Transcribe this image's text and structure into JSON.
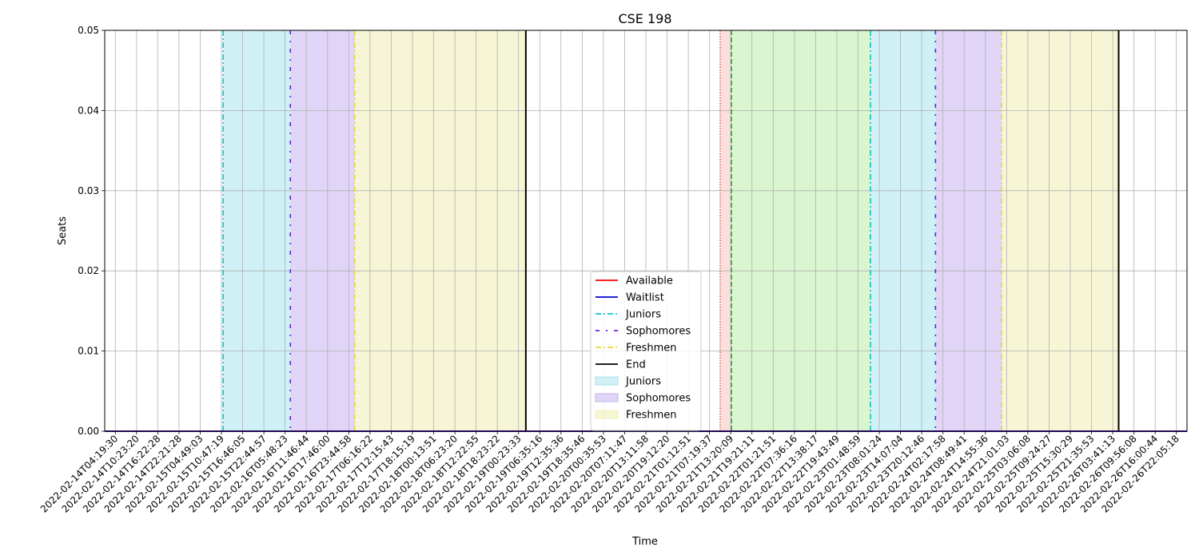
{
  "chart_data": {
    "type": "line",
    "title": "CSE 198",
    "xlabel": "Time",
    "ylabel": "Seats",
    "ylim": [
      0,
      0.05
    ],
    "y_ticks": [
      "0.00",
      "0.01",
      "0.02",
      "0.03",
      "0.04",
      "0.05"
    ],
    "grid": true,
    "legend_position": "bottom-center",
    "x_ticks": [
      "2022-02-14T04:19:30",
      "2022-02-14T10:23:20",
      "2022-02-14T16:22:28",
      "2022-02-14T22:21:28",
      "2022-02-15T04:49:03",
      "2022-02-15T10:47:19",
      "2022-02-15T16:46:05",
      "2022-02-15T22:44:57",
      "2022-02-16T05:48:23",
      "2022-02-16T11:46:44",
      "2022-02-16T17:46:00",
      "2022-02-16T23:44:58",
      "2022-02-17T06:16:22",
      "2022-02-17T12:15:43",
      "2022-02-17T18:15:19",
      "2022-02-18T00:13:51",
      "2022-02-18T06:23:20",
      "2022-02-18T12:22:55",
      "2022-02-18T18:23:22",
      "2022-02-19T00:23:33",
      "2022-02-19T06:35:16",
      "2022-02-19T12:35:36",
      "2022-02-19T18:35:46",
      "2022-02-20T00:35:53",
      "2022-02-20T07:11:47",
      "2022-02-20T13:11:58",
      "2022-02-20T19:12:20",
      "2022-02-21T01:12:51",
      "2022-02-21T07:19:37",
      "2022-02-21T13:20:09",
      "2022-02-21T19:21:11",
      "2022-02-22T01:21:51",
      "2022-02-22T07:36:16",
      "2022-02-22T13:38:17",
      "2022-02-22T19:43:49",
      "2022-02-23T01:48:59",
      "2022-02-23T08:01:24",
      "2022-02-23T14:07:04",
      "2022-02-23T20:12:46",
      "2022-02-24T02:17:58",
      "2022-02-24T08:49:41",
      "2022-02-24T14:55:36",
      "2022-02-24T21:01:03",
      "2022-02-25T03:06:08",
      "2022-02-25T09:24:27",
      "2022-02-25T15:30:29",
      "2022-02-25T21:35:53",
      "2022-02-26T03:41:13",
      "2022-02-26T09:56:08",
      "2022-02-26T16:00:44",
      "2022-02-26T22:05:18"
    ],
    "series": [
      {
        "name": "Available",
        "color": "#ff0000",
        "style": "solid",
        "values": "all 0"
      },
      {
        "name": "Waitlist",
        "color": "#0000cc",
        "style": "solid",
        "values": "all 0"
      }
    ],
    "vertical_lines": [
      {
        "label": "Juniors",
        "x": "2022-02-15T10:47:19",
        "color": "#17becf",
        "style": "dashdot"
      },
      {
        "label": "Sophomores",
        "x": "2022-02-16T05:48:23",
        "color": "#6a1fd0",
        "style": "dashdot-sparse"
      },
      {
        "label": "Freshmen",
        "x": "2022-02-17T00:00:00",
        "color": "#e8d83a",
        "style": "dashdot"
      },
      {
        "label": "End",
        "x": "2022-02-19T00:23:33",
        "color": "#000000",
        "style": "solid"
      },
      {
        "x": "2022-02-21T07:19:37",
        "color": "#e06060",
        "style": "dotted"
      },
      {
        "x": "2022-02-21T10:30:00",
        "color": "#2ca02c",
        "style": "dashed"
      },
      {
        "label": "Juniors",
        "x": "2022-02-23T01:48:59",
        "color": "#17becf",
        "style": "dashdot"
      },
      {
        "label": "Sophomores",
        "x": "2022-02-23T20:12:46",
        "color": "#6a1fd0",
        "style": "dashdot-sparse"
      },
      {
        "label": "Freshmen",
        "x": "2022-02-24T14:55:36",
        "color": "#e8d83a",
        "style": "dashdot"
      },
      {
        "label": "End",
        "x": "2022-02-26T00:00:00",
        "color": "#000000",
        "style": "solid"
      }
    ],
    "shaded_regions": [
      {
        "label": "Juniors",
        "from": "2022-02-15T10:47:19",
        "to": "2022-02-16T05:48:23",
        "color": "#a8e6ec"
      },
      {
        "label": "Sophomores",
        "from": "2022-02-16T05:48:23",
        "to": "2022-02-17T00:00:00",
        "color": "#c7b3ef"
      },
      {
        "label": "Freshmen",
        "from": "2022-02-17T00:00:00",
        "to": "2022-02-19T00:23:33",
        "color": "#efefb5"
      },
      {
        "from": "2022-02-21T07:19:37",
        "to": "2022-02-21T10:30:00",
        "color": "#f5c6c0"
      },
      {
        "from": "2022-02-21T10:30:00",
        "to": "2022-02-23T01:48:59",
        "color": "#b9eeaa"
      },
      {
        "label": "Juniors",
        "from": "2022-02-23T01:48:59",
        "to": "2022-02-23T20:12:46",
        "color": "#a8e6ec"
      },
      {
        "label": "Sophomores",
        "from": "2022-02-23T20:12:46",
        "to": "2022-02-24T14:55:36",
        "color": "#c7b3ef"
      },
      {
        "label": "Freshmen",
        "from": "2022-02-24T14:55:36",
        "to": "2022-02-26T00:00:00",
        "color": "#efefb5"
      }
    ],
    "legend": [
      {
        "label": "Available",
        "kind": "line",
        "color": "#ff0000",
        "dash": ""
      },
      {
        "label": "Waitlist",
        "kind": "line",
        "color": "#0000cc",
        "dash": ""
      },
      {
        "label": "Juniors",
        "kind": "line",
        "color": "#17becf",
        "dash": "7,3,2,3"
      },
      {
        "label": "Sophomores",
        "kind": "line",
        "color": "#6a1fd0",
        "dash": "5,8,2,8"
      },
      {
        "label": "Freshmen",
        "kind": "line",
        "color": "#e8d83a",
        "dash": "7,3,2,3"
      },
      {
        "label": "End",
        "kind": "line",
        "color": "#000000",
        "dash": ""
      },
      {
        "label": "Juniors",
        "kind": "patch",
        "color": "#a8e6ec"
      },
      {
        "label": "Sophomores",
        "kind": "patch",
        "color": "#c7b3ef"
      },
      {
        "label": "Freshmen",
        "kind": "patch",
        "color": "#efefb5"
      }
    ]
  }
}
